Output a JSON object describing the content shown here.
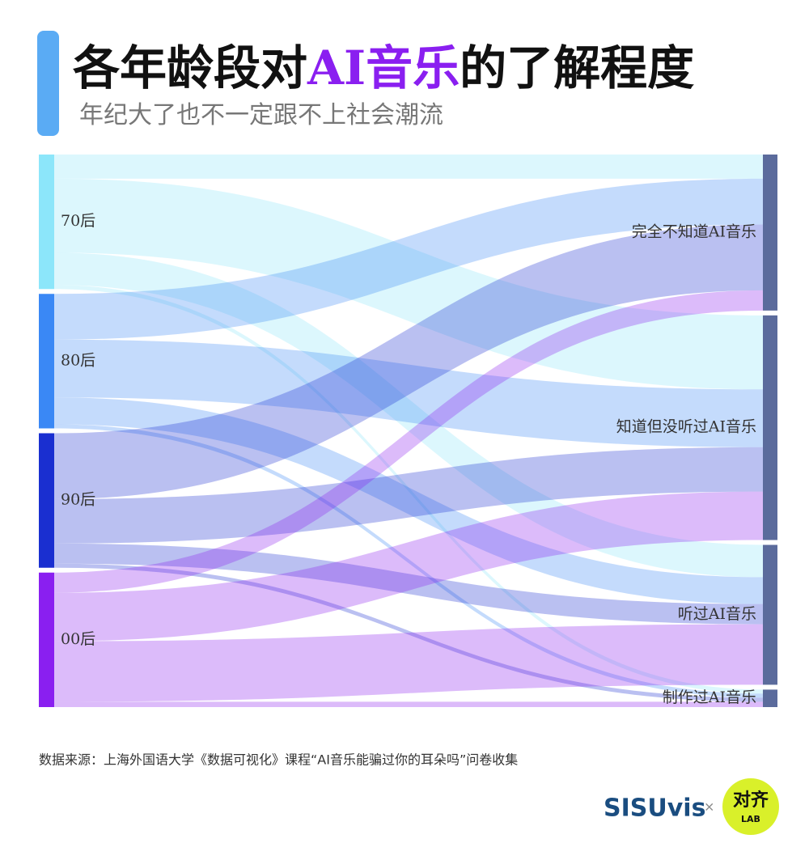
{
  "chart_data": {
    "type": "sankey",
    "title": [
      "各年龄段对",
      "AI音乐",
      "的了解程度"
    ],
    "subtitle": "年纪大了也不一定跟不上社会潮流",
    "series": [
      {
        "name": "70后",
        "color": "#8ce6fa",
        "values": [
          18,
          55,
          24,
          3
        ]
      },
      {
        "name": "80后",
        "color": "#3a88f5",
        "values": [
          34,
          43,
          20,
          3
        ]
      },
      {
        "name": "90后",
        "color": "#1a2fd0",
        "values": [
          49,
          33,
          15,
          3
        ]
      },
      {
        "name": "00后",
        "color": "#8a1ff0",
        "values": [
          15,
          36,
          45,
          4
        ]
      }
    ],
    "targets": [
      {
        "name": "完全不知道AI音乐",
        "color": "#5b6b9c"
      },
      {
        "name": "知道但没听过AI音乐",
        "color": "#5b6b9c"
      },
      {
        "name": "听过AI音乐",
        "color": "#5b6b9c"
      },
      {
        "name": "制作过AI音乐",
        "color": "#5b6b9c"
      }
    ],
    "highlight_color": "#8a1ff0"
  },
  "source": "数据来源：上海外国语大学《数据可视化》课程“AI音乐能骗过你的耳朵吗”问卷收集",
  "logo": {
    "brand": "SISUvis",
    "times": "×",
    "partner": "对齐",
    "partner_sub": "LAB"
  }
}
